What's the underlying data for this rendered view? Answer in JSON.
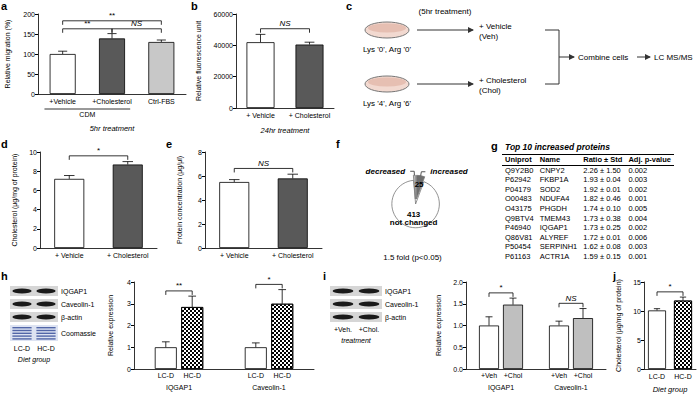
{
  "chart_data": [
    {
      "panel": "a",
      "type": "bar",
      "categories": [
        "+Vehicle",
        "+Cholesterol",
        "Ctrl-FBS"
      ],
      "values": [
        100,
        139,
        130
      ],
      "errors": [
        7,
        12,
        5
      ],
      "colors": [
        "#ffffff",
        "#595959",
        "#c8c8c8"
      ],
      "y_label": "Relative migration (%)",
      "ylim": [
        0,
        200
      ],
      "yticks": [
        0,
        50,
        100,
        150,
        200
      ],
      "group": {
        "text": "CDM",
        "categories": [
          "+Vehicle",
          "+Cholesterol"
        ]
      },
      "x_label": "5hr treatment",
      "significance": [
        {
          "between": [
            "+Vehicle",
            "+Cholesterol"
          ],
          "text": "**"
        },
        {
          "between": [
            "+Vehicle",
            "Ctrl-FBS"
          ],
          "text": "**"
        },
        {
          "between": [
            "+Cholesterol",
            "Ctrl-FBS"
          ],
          "text": "NS"
        }
      ]
    },
    {
      "panel": "b",
      "type": "bar",
      "categories": [
        "+ Vehicle",
        "+ Cholesterol"
      ],
      "values": [
        42000,
        40500
      ],
      "errors": [
        5000,
        1500
      ],
      "colors": [
        "#ffffff",
        "#595959"
      ],
      "y_label": "Relative fluorescence unit",
      "ylim": [
        0,
        60000
      ],
      "yticks": [
        0,
        20000,
        40000,
        60000
      ],
      "x_label": "24hr treatment",
      "significance": [
        {
          "between": [
            "+ Vehicle",
            "+ Cholesterol"
          ],
          "text": "NS"
        }
      ]
    },
    {
      "panel": "d",
      "type": "bar",
      "categories": [
        "+ Vehicle",
        "+ Cholesterol"
      ],
      "values": [
        7.2,
        8.7
      ],
      "errors": [
        0.35,
        0.3
      ],
      "colors": [
        "#ffffff",
        "#595959"
      ],
      "y_label": "Cholesterol (μg/mg of protein)",
      "ylim": [
        0,
        10
      ],
      "yticks": [
        0,
        2,
        4,
        6,
        8,
        10
      ],
      "significance": [
        {
          "between": [
            "+ Vehicle",
            "+ Cholesterol"
          ],
          "text": "*"
        }
      ]
    },
    {
      "panel": "e",
      "type": "bar",
      "categories": [
        "+ Vehicle",
        "+ Cholesterol"
      ],
      "values": [
        5.5,
        5.8
      ],
      "errors": [
        0.2,
        0.35
      ],
      "colors": [
        "#ffffff",
        "#595959"
      ],
      "y_label": "Protein concentration (μg/μl)",
      "ylim": [
        0,
        8
      ],
      "yticks": [
        0,
        2,
        4,
        6,
        8
      ],
      "significance": [
        {
          "between": [
            "+ Vehicle",
            "+ Cholesterol"
          ],
          "text": "NS"
        }
      ]
    },
    {
      "panel": "f",
      "type": "pie",
      "categories": [
        "increased",
        "not changed",
        "decreased"
      ],
      "values": [
        25,
        413,
        6
      ],
      "colors": [
        "#6e6e6e",
        "#ffffff",
        "#c4c4c4"
      ],
      "data_labels": true,
      "subtitle": "1.5 fold (p<0.05)"
    },
    {
      "panel": "h",
      "type": "bar",
      "categories": [
        "IQGAP1",
        "Caveolin-1"
      ],
      "series": [
        {
          "name": "LC-D",
          "color": "#ffffff",
          "values": [
            1.0,
            1.0
          ],
          "errors": [
            0.25,
            0.2
          ]
        },
        {
          "name": "HC-D",
          "color": "#ffffff",
          "values": [
            2.85,
            3.0
          ],
          "errors": [
            0.5,
            0.65
          ]
        }
      ],
      "y_label": "Relative expression",
      "ylim": [
        0,
        4
      ],
      "yticks": [
        0,
        1,
        2,
        3,
        4
      ],
      "significance": [
        {
          "category": "IQGAP1",
          "text": "**"
        },
        {
          "category": "Caveolin-1",
          "text": "*"
        }
      ]
    },
    {
      "panel": "i",
      "type": "bar",
      "categories": [
        "IQGAP1",
        "Caveolin-1"
      ],
      "series": [
        {
          "name": "+Veh",
          "color": "#ffffff",
          "values": [
            1.0,
            1.0
          ],
          "errors": [
            0.2,
            0.1
          ]
        },
        {
          "name": "+Chol",
          "color": "#bfbfbf",
          "values": [
            1.48,
            1.17
          ],
          "errors": [
            0.15,
            0.22
          ]
        }
      ],
      "y_label": "Relative expression",
      "ylim": [
        0,
        2
      ],
      "yticks": [
        {
          "value": 0,
          "label": "0.0"
        },
        {
          "value": 0.5,
          "label": "0.5"
        },
        {
          "value": 1,
          "label": "1.0"
        },
        {
          "value": 1.5,
          "label": "1.5"
        },
        {
          "value": 2,
          "label": "2.0"
        }
      ],
      "significance": [
        {
          "category": "IQGAP1",
          "text": "*"
        },
        {
          "category": "Caveolin-1",
          "text": "NS"
        }
      ]
    },
    {
      "panel": "j",
      "type": "bar",
      "categories": [
        "LC-D",
        "HC-D"
      ],
      "values": [
        10.1,
        11.8
      ],
      "errors": [
        0.3,
        0.6
      ],
      "colors": [
        "#ffffff",
        "#ffffff"
      ],
      "y_label": "Cholesterol (μg/mg of protein)",
      "ylim": [
        0,
        15
      ],
      "yticks": [
        0,
        5,
        10,
        15
      ],
      "x_label": "Diet group",
      "significance": [
        {
          "between": [
            "LC-D",
            "HC-D"
          ],
          "text": "*"
        }
      ]
    }
  ],
  "diagram": {
    "panel": "c",
    "conditions": [
      {
        "medium": "Lys '0', Arg '0'",
        "treatment": "+ Vehicle",
        "abbr": "(Veh)"
      },
      {
        "medium": "Lys '4', Arg '6'",
        "treatment": "+ Cholesterol",
        "abbr": "(Chol)"
      }
    ],
    "time": "(5hr treatment)",
    "steps": [
      "Combine cells",
      "LC MS/MS"
    ]
  },
  "table": {
    "panel": "g",
    "title": "Top 10 increased proteins",
    "columns": [
      "Uniprot",
      "Name",
      "Ratio ± Std",
      "Adj. p-value"
    ],
    "rows": [
      [
        "Q9Y2B0",
        "CNPY2",
        "2.26 ± 1.50",
        "0.002"
      ],
      [
        "P62942",
        "FKBP1A",
        "1.93 ± 0.04",
        "0.003"
      ],
      [
        "P04179",
        "SOD2",
        "1.92 ± 0.01",
        "0.002"
      ],
      [
        "O00483",
        "NDUFA4",
        "1.82 ± 0.46",
        "0.001"
      ],
      [
        "O43175",
        "PHGDH",
        "1.74 ± 0.10",
        "0.005"
      ],
      [
        "Q9BTV4",
        "TMEM43",
        "1.73 ± 0.38",
        "0.004"
      ],
      [
        "P46940",
        "IQGAP1",
        "1.73 ± 0.25",
        "0.002"
      ],
      [
        "Q86V81",
        "ALYREF",
        "1.72 ± 0.01",
        "0.006"
      ],
      [
        "P50454",
        "SERPINH1",
        "1.62 ± 0.08",
        "0.003"
      ],
      [
        "P61163",
        "ACTR1A",
        "1.59 ± 0.15",
        "0.001"
      ]
    ]
  },
  "blots": [
    {
      "panel": "h",
      "rows": [
        "IQGAP1",
        "Caveolin-1",
        "β-actin",
        "Coomassie"
      ],
      "lanes": [
        "LC-D",
        "HC-D"
      ],
      "lane_title": "Diet group"
    },
    {
      "panel": "i",
      "rows": [
        "IQGAP1",
        "Caveolin-1",
        "β-actin"
      ],
      "lanes": [
        "+Veh.",
        "+Chol."
      ],
      "lane_title": "treatment"
    }
  ]
}
